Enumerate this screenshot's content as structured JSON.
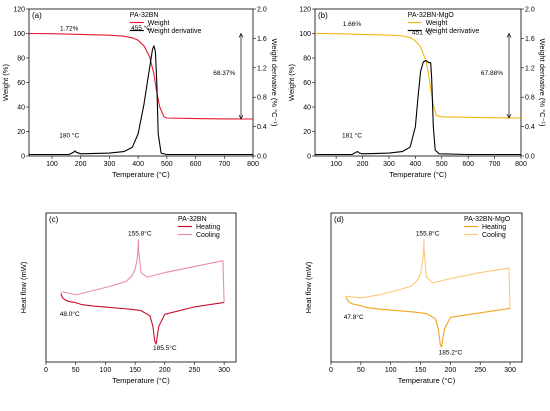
{
  "chart_data": [
    {
      "type": "line",
      "panel_label": "(a)",
      "sample": "PA-32BN",
      "xlabel": "Temperature (°C)",
      "ylabel": "Weight (%)",
      "y2label": "Weight derivative (% °C⁻¹)",
      "xlim": [
        20,
        800
      ],
      "ylim": [
        0,
        120
      ],
      "y2lim": [
        0,
        2.0
      ],
      "xticks": [
        "100",
        "200",
        "300",
        "400",
        "500",
        "600",
        "700",
        "800"
      ],
      "yticks": [
        "0",
        "20",
        "40",
        "60",
        "80",
        "100",
        "120"
      ],
      "y2ticks": [
        "0.0",
        "0.4",
        "0.8",
        "1.2",
        "1.6",
        "2.0"
      ],
      "legend": {
        "position": "top-center"
      },
      "series": [
        {
          "name": "Weight",
          "axis": "left",
          "color": "#e6192d",
          "x": [
            20,
            100,
            200,
            300,
            350,
            380,
            400,
            420,
            440,
            455,
            465,
            475,
            490,
            500,
            600,
            700,
            800
          ],
          "y": [
            100,
            99.8,
            99.3,
            98.6,
            97.8,
            96.5,
            94.5,
            90,
            81,
            67,
            52,
            40,
            32,
            31,
            30.5,
            30.3,
            30.2
          ]
        },
        {
          "name": "Weight derivative",
          "axis": "right",
          "color": "#000000",
          "x": [
            20,
            100,
            160,
            175,
            180,
            185,
            200,
            300,
            350,
            380,
            400,
            420,
            440,
            450,
            455,
            460,
            465,
            470,
            480,
            500,
            600,
            700,
            800
          ],
          "y": [
            0.02,
            0.02,
            0.02,
            0.05,
            0.07,
            0.05,
            0.03,
            0.04,
            0.06,
            0.12,
            0.3,
            0.7,
            1.2,
            1.45,
            1.5,
            1.42,
            1.0,
            0.3,
            0.04,
            0.02,
            0.02,
            0.02,
            0.02
          ]
        }
      ],
      "annotations": [
        {
          "text": "1.72%",
          "x": 160,
          "y": 102.5
        },
        {
          "text": "455 °C",
          "x": 410,
          "y": 103
        },
        {
          "text": "68.37%",
          "x": 700,
          "y": 66
        },
        {
          "text": "180 °C",
          "x": 160,
          "y": 15
        }
      ]
    },
    {
      "type": "line",
      "panel_label": "(b)",
      "sample": "PA-32BN-MgO",
      "xlabel": "Temperature (°C)",
      "ylabel": "Weight (%)",
      "y2label": "Weight derivative (% °C⁻¹)",
      "xlim": [
        20,
        800
      ],
      "ylim": [
        0,
        120
      ],
      "y2lim": [
        0,
        2.0
      ],
      "xticks": [
        "100",
        "200",
        "300",
        "400",
        "500",
        "600",
        "700",
        "800"
      ],
      "yticks": [
        "0",
        "20",
        "40",
        "60",
        "80",
        "100",
        "120"
      ],
      "y2ticks": [
        "0.0",
        "0.4",
        "0.8",
        "1.2",
        "1.6",
        "2.0"
      ],
      "legend": {
        "position": "top-center"
      },
      "series": [
        {
          "name": "Weight",
          "axis": "left",
          "color": "#f5b50f",
          "x": [
            20,
            100,
            200,
            300,
            350,
            380,
            400,
            420,
            440,
            451,
            460,
            470,
            480,
            500,
            600,
            700,
            800
          ],
          "y": [
            100,
            99.8,
            99.3,
            98.7,
            98,
            96.8,
            94,
            89,
            78,
            66,
            52,
            40,
            33,
            32,
            31.6,
            31.2,
            31
          ]
        },
        {
          "name": "Weight derivative",
          "axis": "right",
          "color": "#000000",
          "x": [
            20,
            100,
            160,
            175,
            181,
            188,
            200,
            300,
            350,
            380,
            400,
            410,
            420,
            430,
            440,
            451,
            458,
            462,
            468,
            475,
            490,
            600,
            700,
            800
          ],
          "y": [
            0.02,
            0.02,
            0.02,
            0.05,
            0.06,
            0.04,
            0.03,
            0.04,
            0.06,
            0.12,
            0.4,
            0.8,
            1.15,
            1.28,
            1.3,
            1.27,
            1.27,
            1.05,
            0.4,
            0.08,
            0.03,
            0.02,
            0.02,
            0.02
          ]
        }
      ],
      "annotations": [
        {
          "text": "1.66%",
          "x": 160,
          "y": 106
        },
        {
          "text": "451 °C",
          "x": 425,
          "y": 99
        },
        {
          "text": "67.88%",
          "x": 690,
          "y": 66
        },
        {
          "text": "181 °C",
          "x": 160,
          "y": 15
        }
      ]
    },
    {
      "type": "line",
      "panel_label": "(c)",
      "sample": "PA-32BN",
      "xlabel": "Temperature (°C)",
      "ylabel": "Heat flow (mW)",
      "xlim": [
        0,
        320
      ],
      "ylim": [
        0,
        100
      ],
      "xticks": [
        "0",
        "50",
        "100",
        "150",
        "200",
        "250",
        "300"
      ],
      "legend": {
        "position": "top-right"
      },
      "series": [
        {
          "name": "Heating",
          "color": "#c8102e",
          "x": [
            25,
            28,
            33,
            40,
            48,
            55,
            60,
            80,
            110,
            140,
            160,
            175,
            180,
            183,
            185.5,
            190,
            200,
            250,
            300
          ],
          "y": [
            46,
            43,
            41.5,
            40.5,
            40,
            39.2,
            38.5,
            37.5,
            36.5,
            35.5,
            34.5,
            31,
            24,
            14,
            12,
            24,
            32,
            37,
            40
          ]
        },
        {
          "name": "Cooling",
          "color": "#e88fa0",
          "x": [
            300,
            298,
            250,
            200,
            170,
            160,
            156,
            155.8,
            154,
            150,
            145,
            135,
            110,
            80,
            50,
            30,
            25
          ],
          "y": [
            40,
            68,
            64,
            60,
            57,
            60,
            75,
            82,
            70,
            62,
            58,
            54,
            51,
            48,
            45,
            47,
            47
          ]
        }
      ],
      "annotations": [
        {
          "text": "155.8°C",
          "x": 158,
          "y": 85
        },
        {
          "text": "48.0°C",
          "x": 40,
          "y": 31
        },
        {
          "text": "185.5°C",
          "x": 200,
          "y": 8
        }
      ]
    },
    {
      "type": "line",
      "panel_label": "(d)",
      "sample": "PA-32BN-MgO",
      "xlabel": "Temperature (°C)",
      "ylabel": "Heat flow (mW)",
      "xlim": [
        0,
        320
      ],
      "ylim": [
        0,
        100
      ],
      "xticks": [
        "0",
        "50",
        "100",
        "150",
        "200",
        "250",
        "300"
      ],
      "legend": {
        "position": "top-right"
      },
      "series": [
        {
          "name": "Heating",
          "color": "#f2a51e",
          "x": [
            25,
            28,
            33,
            40,
            47.8,
            55,
            60,
            80,
            110,
            140,
            160,
            175,
            180,
            183,
            185.2,
            190,
            200,
            250,
            300
          ],
          "y": [
            44,
            41,
            39.5,
            38.5,
            38,
            37.2,
            36.5,
            35.5,
            34.5,
            33.5,
            32.5,
            29,
            22,
            12,
            10,
            22,
            30,
            33,
            36
          ]
        },
        {
          "name": "Cooling",
          "color": "#fbc97a",
          "x": [
            300,
            298,
            250,
            200,
            170,
            160,
            156,
            155.8,
            154,
            150,
            145,
            135,
            110,
            80,
            50,
            30,
            25
          ],
          "y": [
            36,
            63,
            60,
            56,
            53,
            57,
            75,
            82,
            68,
            59,
            55,
            51,
            48,
            45,
            43,
            44,
            44
          ]
        }
      ],
      "annotations": [
        {
          "text": "155.8°C",
          "x": 162,
          "y": 85
        },
        {
          "text": "47.8°C",
          "x": 38,
          "y": 29
        },
        {
          "text": "185.2°C",
          "x": 200,
          "y": 5
        }
      ]
    }
  ]
}
